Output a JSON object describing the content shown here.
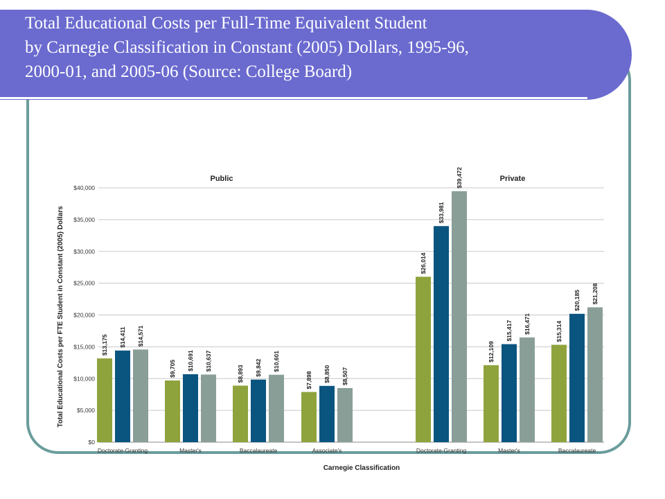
{
  "slide": {
    "title_lines": [
      "Total Educational Costs per Full-Time Equivalent Student",
      "by Carnegie Classification in Constant (2005) Dollars, 1995-96,",
      "2000-01, and 2005-06 (Source: College Board)"
    ]
  },
  "colors": {
    "banner": "#6a6acf",
    "frame": "#6b9c9c",
    "series": [
      "#8fa33d",
      "#0a5480",
      "#8a9e98"
    ]
  },
  "chart_data": {
    "type": "bar",
    "title": "",
    "xlabel": "Carnegie Classification",
    "ylabel": "Total Educational Costs per FTE Student in Constant (2005) Dollars",
    "ylim": [
      0,
      40000
    ],
    "yticks": [
      "$0",
      "$5,000",
      "$10,000",
      "$15,000",
      "$20,000",
      "$25,000",
      "$30,000",
      "$35,000",
      "$40,000"
    ],
    "grid": true,
    "groups": [
      {
        "name": "Public",
        "categories": [
          "Doctorate-Granting",
          "Master's",
          "Baccalaureate",
          "Associate's"
        ],
        "values": [
          [
            13175,
            14411,
            14571
          ],
          [
            9705,
            10691,
            10637
          ],
          [
            8893,
            9842,
            10601
          ],
          [
            7898,
            8850,
            8507
          ]
        ],
        "labels": [
          [
            "$13,175",
            "$14,411",
            "$14,571"
          ],
          [
            "$9,705",
            "$10,691",
            "$10,637"
          ],
          [
            "$8,893",
            "$9,842",
            "$10,601"
          ],
          [
            "$7,898",
            "$8,850",
            "$8,507"
          ]
        ]
      },
      {
        "name": "Private",
        "categories": [
          "Doctorate-Granting",
          "Master's",
          "Baccalaureate"
        ],
        "values": [
          [
            26014,
            33981,
            39472
          ],
          [
            12109,
            15417,
            16471
          ],
          [
            15314,
            20185,
            21208
          ]
        ],
        "labels": [
          [
            "$26,014",
            "$33,981",
            "$39,472"
          ],
          [
            "$12,109",
            "$15,417",
            "$16,471"
          ],
          [
            "$15,314",
            "$20,185",
            "$21,208"
          ]
        ]
      }
    ]
  }
}
